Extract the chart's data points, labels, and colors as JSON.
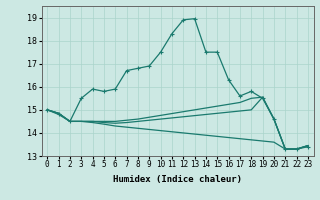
{
  "xlabel": "Humidex (Indice chaleur)",
  "bg_color": "#cce8e3",
  "grid_color": "#aad4cc",
  "line_color": "#1a7a6e",
  "xlim": [
    -0.5,
    23.5
  ],
  "ylim": [
    13.0,
    19.5
  ],
  "yticks": [
    13,
    14,
    15,
    16,
    17,
    18,
    19
  ],
  "xticks": [
    0,
    1,
    2,
    3,
    4,
    5,
    6,
    7,
    8,
    9,
    10,
    11,
    12,
    13,
    14,
    15,
    16,
    17,
    18,
    19,
    20,
    21,
    22,
    23
  ],
  "main_x": [
    0,
    1,
    2,
    3,
    4,
    5,
    6,
    7,
    8,
    9,
    10,
    11,
    12,
    13,
    14,
    15,
    16,
    17,
    18,
    19,
    20,
    21,
    22,
    23
  ],
  "main_y": [
    15.0,
    14.8,
    14.5,
    15.5,
    15.9,
    15.8,
    15.9,
    16.7,
    16.8,
    16.9,
    17.5,
    18.3,
    18.9,
    18.95,
    17.5,
    17.5,
    16.3,
    15.6,
    15.8,
    15.5,
    14.6,
    13.3,
    13.3,
    13.4
  ],
  "line2_x": [
    0,
    1,
    2,
    3,
    4,
    5,
    6,
    7,
    8,
    9,
    10,
    11,
    12,
    13,
    14,
    15,
    16,
    17,
    18,
    19,
    20,
    21,
    22,
    23
  ],
  "line2_y": [
    15.0,
    14.85,
    14.5,
    14.5,
    14.5,
    14.5,
    14.5,
    14.55,
    14.6,
    14.68,
    14.76,
    14.84,
    14.92,
    15.0,
    15.08,
    15.16,
    15.24,
    15.32,
    15.5,
    15.55,
    14.6,
    13.3,
    13.3,
    13.45
  ],
  "line3_x": [
    0,
    1,
    2,
    3,
    4,
    5,
    6,
    7,
    8,
    9,
    10,
    11,
    12,
    13,
    14,
    15,
    16,
    17,
    18,
    19,
    20,
    21,
    22,
    23
  ],
  "line3_y": [
    15.0,
    14.85,
    14.5,
    14.5,
    14.5,
    14.45,
    14.42,
    14.45,
    14.5,
    14.55,
    14.6,
    14.65,
    14.7,
    14.75,
    14.8,
    14.85,
    14.9,
    14.95,
    15.0,
    15.55,
    14.6,
    13.3,
    13.3,
    13.45
  ],
  "line4_x": [
    0,
    1,
    2,
    3,
    4,
    5,
    6,
    7,
    8,
    9,
    10,
    11,
    12,
    13,
    14,
    15,
    16,
    17,
    18,
    19,
    20,
    21,
    22,
    23
  ],
  "line4_y": [
    15.0,
    14.85,
    14.5,
    14.5,
    14.45,
    14.38,
    14.3,
    14.25,
    14.2,
    14.15,
    14.1,
    14.05,
    14.0,
    13.95,
    13.9,
    13.85,
    13.8,
    13.75,
    13.7,
    13.65,
    13.6,
    13.3,
    13.3,
    13.45
  ]
}
